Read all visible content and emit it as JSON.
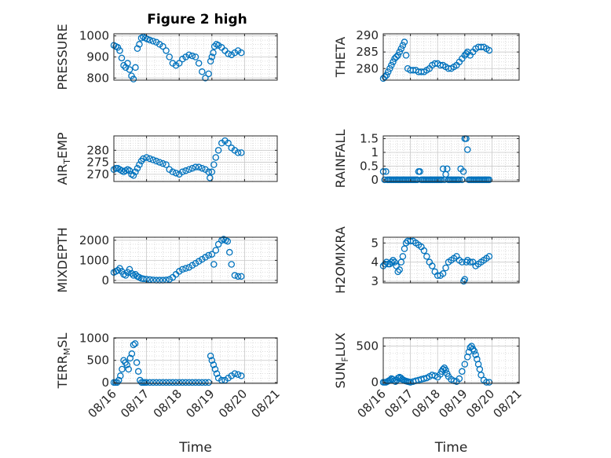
{
  "figure_title": "Figure 2 high",
  "colors": {
    "marker": "#0072bd",
    "axis": "#262626",
    "grid": "#c8c8c8"
  },
  "chart_data": [
    {
      "type": "scatter",
      "title": "Figure 2 high",
      "ylabel": "PRESSURE",
      "ylabel_parts": [
        {
          "t": "PRESSURE"
        }
      ],
      "ylim": [
        790,
        1010
      ],
      "yticks": [
        800,
        900,
        1000
      ],
      "xlim": [
        16,
        21
      ],
      "xticks": [
        "08/16",
        "08/17",
        "08/18",
        "08/19",
        "08/20",
        "08/21"
      ],
      "xtick_labels_visible": false,
      "xlabel": "",
      "grid": true,
      "x": [
        16.0,
        16.06,
        16.12,
        16.18,
        16.24,
        16.3,
        16.36,
        16.42,
        16.48,
        16.54,
        16.6,
        16.66,
        16.72,
        16.78,
        16.84,
        16.9,
        16.96,
        17.02,
        17.1,
        17.2,
        17.3,
        17.4,
        17.5,
        17.6,
        17.7,
        17.8,
        17.9,
        18.0,
        18.1,
        18.2,
        18.3,
        18.4,
        18.5,
        18.6,
        18.7,
        18.8,
        18.9,
        18.96,
        19.0,
        19.04,
        19.08,
        19.14,
        19.2,
        19.3,
        19.4,
        19.5,
        19.6,
        19.7,
        19.8,
        19.9
      ],
      "y": [
        955,
        950,
        945,
        930,
        895,
        860,
        850,
        870,
        840,
        810,
        795,
        850,
        940,
        960,
        990,
        995,
        990,
        985,
        980,
        975,
        970,
        960,
        950,
        930,
        900,
        870,
        860,
        870,
        890,
        900,
        910,
        905,
        900,
        870,
        830,
        800,
        820,
        880,
        900,
        920,
        950,
        960,
        955,
        945,
        930,
        915,
        910,
        920,
        930,
        920
      ]
    },
    {
      "type": "scatter",
      "title": "",
      "ylabel": "THETA",
      "ylabel_parts": [
        {
          "t": "THETA"
        }
      ],
      "ylim": [
        276.5,
        290.5
      ],
      "yticks": [
        280,
        285,
        290
      ],
      "xlim": [
        16,
        21
      ],
      "xticks": [
        "08/16",
        "08/17",
        "08/18",
        "08/19",
        "08/20",
        "08/21"
      ],
      "xtick_labels_visible": false,
      "xlabel": "",
      "grid": true,
      "x": [
        16.0,
        16.06,
        16.12,
        16.18,
        16.24,
        16.3,
        16.36,
        16.42,
        16.48,
        16.54,
        16.6,
        16.66,
        16.72,
        16.78,
        16.84,
        16.9,
        17.0,
        17.1,
        17.2,
        17.3,
        17.4,
        17.5,
        17.6,
        17.7,
        17.8,
        17.9,
        18.0,
        18.1,
        18.2,
        18.3,
        18.4,
        18.5,
        18.6,
        18.7,
        18.8,
        18.9,
        19.0,
        19.06,
        19.1,
        19.2,
        19.3,
        19.4,
        19.5,
        19.6,
        19.7,
        19.8,
        19.9
      ],
      "y": [
        277,
        277.5,
        278,
        279,
        280,
        281,
        282,
        283,
        283.5,
        284,
        285,
        286,
        287,
        288,
        284,
        280,
        279.5,
        279.5,
        279.5,
        279,
        279,
        279,
        279.5,
        280,
        281,
        281.5,
        281.5,
        281,
        281,
        280.5,
        280,
        280,
        280.5,
        281,
        282,
        283,
        284,
        284.5,
        285,
        284,
        285,
        286,
        286.5,
        286.5,
        286.5,
        286,
        285.5
      ]
    },
    {
      "type": "scatter",
      "title": "",
      "ylabel": "AIR_TEMP",
      "ylabel_parts": [
        {
          "t": "AIR"
        },
        {
          "t": "T",
          "sub": true
        },
        {
          "t": "EMP"
        }
      ],
      "ylim": [
        267,
        286
      ],
      "yticks": [
        270,
        275,
        280
      ],
      "xlim": [
        16,
        21
      ],
      "xticks": [
        "08/16",
        "08/17",
        "08/18",
        "08/19",
        "08/20",
        "08/21"
      ],
      "xtick_labels_visible": false,
      "xlabel": "",
      "grid": true,
      "x": [
        16.0,
        16.06,
        16.12,
        16.18,
        16.24,
        16.3,
        16.36,
        16.42,
        16.48,
        16.54,
        16.6,
        16.66,
        16.72,
        16.78,
        16.84,
        16.9,
        17.0,
        17.1,
        17.2,
        17.3,
        17.4,
        17.5,
        17.6,
        17.7,
        17.8,
        17.9,
        18.0,
        18.1,
        18.2,
        18.3,
        18.4,
        18.5,
        18.6,
        18.7,
        18.8,
        18.9,
        18.94,
        19.0,
        19.06,
        19.12,
        19.2,
        19.3,
        19.4,
        19.5,
        19.6,
        19.7,
        19.8,
        19.9
      ],
      "y": [
        272,
        272.5,
        272.5,
        272,
        271.5,
        271,
        271.5,
        272,
        271.5,
        270,
        269.5,
        271,
        272.5,
        274,
        275.5,
        276.5,
        277,
        276.5,
        276,
        275.5,
        275,
        274.5,
        274,
        272,
        271,
        270.5,
        270,
        271,
        271.5,
        272,
        272.5,
        273,
        273,
        272.5,
        272,
        271,
        268.5,
        271,
        274,
        277,
        280,
        283,
        284,
        283,
        281,
        280,
        279,
        279
      ]
    },
    {
      "type": "scatter",
      "title": "",
      "ylabel": "RAINFALL",
      "ylabel_parts": [
        {
          "t": "RAINFALL"
        }
      ],
      "ylim": [
        -0.06,
        1.6
      ],
      "yticks": [
        0,
        0.5,
        1,
        1.5
      ],
      "xlim": [
        16,
        21
      ],
      "xticks": [
        "08/16",
        "08/17",
        "08/18",
        "08/19",
        "08/20",
        "08/21"
      ],
      "xtick_labels_visible": false,
      "xlabel": "",
      "grid": true,
      "x": [
        16.0,
        16.05,
        16.1,
        16.15,
        16.2,
        16.25,
        16.3,
        16.35,
        16.4,
        16.45,
        16.5,
        16.55,
        16.6,
        16.65,
        16.7,
        16.75,
        16.8,
        16.85,
        16.9,
        16.95,
        17.0,
        17.05,
        17.1,
        17.15,
        17.2,
        17.25,
        17.3,
        17.35,
        17.4,
        17.45,
        17.5,
        17.55,
        17.6,
        17.65,
        17.7,
        17.75,
        17.8,
        17.85,
        17.9,
        17.95,
        18.0,
        18.05,
        18.1,
        18.15,
        18.2,
        18.25,
        18.3,
        18.35,
        18.4,
        18.45,
        18.5,
        18.55,
        18.6,
        18.65,
        18.7,
        18.75,
        18.8,
        18.85,
        18.9,
        18.95,
        19.0,
        19.05,
        19.1,
        19.15,
        19.2,
        19.25,
        19.3,
        19.35,
        19.4,
        19.45,
        19.5,
        19.55,
        19.6,
        19.65,
        19.7,
        19.75,
        19.8,
        19.85,
        19.9
      ],
      "y": [
        0.3,
        0,
        0.3,
        0,
        0,
        0,
        0,
        0,
        0,
        0,
        0,
        0,
        0,
        0,
        0,
        0,
        0,
        0,
        0,
        0,
        0,
        0,
        0,
        0,
        0,
        0,
        0.3,
        0.3,
        0,
        0,
        0,
        0,
        0,
        0,
        0,
        0,
        0,
        0,
        0,
        0,
        0,
        0,
        0,
        0,
        0.4,
        0,
        0.2,
        0.4,
        0,
        0,
        0,
        0,
        0,
        0,
        0,
        0,
        0,
        0.4,
        0,
        0.3,
        1.5,
        1.5,
        1.1,
        0,
        0,
        0,
        0,
        0,
        0,
        0,
        0,
        0,
        0,
        0,
        0,
        0,
        0,
        0,
        0
      ]
    },
    {
      "type": "scatter",
      "title": "",
      "ylabel": "MIXDEPTH",
      "ylabel_parts": [
        {
          "t": "MIXDEPTH"
        }
      ],
      "ylim": [
        -120,
        2150
      ],
      "yticks": [
        0,
        1000,
        2000
      ],
      "xlim": [
        16,
        21
      ],
      "xticks": [
        "08/16",
        "08/17",
        "08/18",
        "08/19",
        "08/20",
        "08/21"
      ],
      "xtick_labels_visible": false,
      "xlabel": "",
      "grid": true,
      "x": [
        16.0,
        16.06,
        16.12,
        16.18,
        16.24,
        16.3,
        16.36,
        16.42,
        16.48,
        16.54,
        16.6,
        16.66,
        16.72,
        16.78,
        16.84,
        16.9,
        17.0,
        17.1,
        17.2,
        17.3,
        17.4,
        17.5,
        17.6,
        17.7,
        17.8,
        17.9,
        18.0,
        18.1,
        18.2,
        18.3,
        18.4,
        18.5,
        18.6,
        18.7,
        18.8,
        18.9,
        19.0,
        19.06,
        19.12,
        19.2,
        19.3,
        19.36,
        19.42,
        19.48,
        19.54,
        19.6,
        19.7,
        19.8,
        19.9
      ],
      "y": [
        400,
        450,
        500,
        600,
        450,
        300,
        250,
        400,
        550,
        350,
        250,
        300,
        200,
        150,
        100,
        80,
        60,
        40,
        20,
        10,
        10,
        10,
        20,
        50,
        150,
        300,
        450,
        550,
        600,
        650,
        750,
        850,
        950,
        1050,
        1150,
        1250,
        1300,
        800,
        1500,
        1800,
        2000,
        2050,
        2000,
        1950,
        1400,
        800,
        250,
        200,
        200
      ]
    },
    {
      "type": "scatter",
      "title": "",
      "ylabel": "H2OMIXRA",
      "ylabel_parts": [
        {
          "t": "H2OMIXRA"
        }
      ],
      "ylim": [
        2.92,
        5.3
      ],
      "yticks": [
        3,
        4,
        5
      ],
      "xlim": [
        16,
        21
      ],
      "xticks": [
        "08/16",
        "08/17",
        "08/18",
        "08/19",
        "08/20",
        "08/21"
      ],
      "xtick_labels_visible": false,
      "xlabel": "",
      "grid": true,
      "x": [
        16.0,
        16.06,
        16.12,
        16.18,
        16.24,
        16.3,
        16.36,
        16.42,
        16.48,
        16.54,
        16.6,
        16.66,
        16.72,
        16.78,
        16.84,
        16.9,
        17.0,
        17.1,
        17.2,
        17.3,
        17.4,
        17.5,
        17.6,
        17.7,
        17.8,
        17.9,
        18.0,
        18.1,
        18.2,
        18.3,
        18.4,
        18.5,
        18.6,
        18.7,
        18.8,
        18.9,
        18.96,
        19.0,
        19.06,
        19.1,
        19.2,
        19.3,
        19.4,
        19.5,
        19.6,
        19.7,
        19.8,
        19.9
      ],
      "y": [
        3.8,
        3.9,
        4.0,
        3.9,
        3.9,
        4.0,
        4.1,
        4.0,
        3.8,
        3.5,
        3.6,
        4.0,
        4.3,
        4.7,
        5.0,
        5.1,
        5.1,
        5.1,
        5.0,
        4.9,
        4.8,
        4.6,
        4.3,
        4.0,
        3.8,
        3.5,
        3.3,
        3.3,
        3.4,
        3.7,
        4.0,
        4.1,
        4.2,
        4.3,
        4.1,
        4.0,
        3.0,
        3.1,
        4.0,
        4.1,
        4.0,
        4.0,
        3.8,
        3.9,
        4.0,
        4.1,
        4.2,
        4.3
      ]
    },
    {
      "type": "scatter",
      "title": "",
      "ylabel": "TERR_MSL",
      "ylabel_parts": [
        {
          "t": "TERR"
        },
        {
          "t": "M",
          "sub": true
        },
        {
          "t": "SL"
        }
      ],
      "ylim": [
        -20,
        1010
      ],
      "yticks": [
        0,
        500,
        1000
      ],
      "xlim": [
        16,
        21
      ],
      "xticks": [
        "08/16",
        "08/17",
        "08/18",
        "08/19",
        "08/20",
        "08/21"
      ],
      "xtick_labels_visible": true,
      "xlabel": "Time",
      "grid": true,
      "x": [
        16.0,
        16.05,
        16.1,
        16.15,
        16.2,
        16.25,
        16.3,
        16.35,
        16.4,
        16.45,
        16.5,
        16.55,
        16.6,
        16.65,
        16.7,
        16.75,
        16.8,
        16.85,
        16.9,
        16.95,
        17.0,
        17.1,
        17.2,
        17.3,
        17.4,
        17.5,
        17.6,
        17.7,
        17.8,
        17.9,
        18.0,
        18.1,
        18.2,
        18.3,
        18.4,
        18.5,
        18.6,
        18.7,
        18.8,
        18.9,
        18.96,
        19.0,
        19.05,
        19.1,
        19.15,
        19.2,
        19.3,
        19.4,
        19.5,
        19.6,
        19.7,
        19.8,
        19.9
      ],
      "y": [
        0,
        0,
        0,
        50,
        150,
        300,
        500,
        450,
        400,
        300,
        550,
        650,
        850,
        880,
        450,
        250,
        50,
        0,
        0,
        0,
        0,
        0,
        0,
        0,
        0,
        0,
        0,
        0,
        0,
        0,
        0,
        0,
        0,
        0,
        0,
        0,
        0,
        0,
        0,
        0,
        600,
        500,
        400,
        300,
        200,
        100,
        50,
        50,
        100,
        150,
        200,
        180,
        150
      ]
    },
    {
      "type": "scatter",
      "title": "",
      "ylabel": "SUN_FLUX",
      "ylabel_parts": [
        {
          "t": "SUN"
        },
        {
          "t": "F",
          "sub": true
        },
        {
          "t": "LUX"
        }
      ],
      "ylim": [
        -15,
        615
      ],
      "yticks": [
        0,
        500
      ],
      "xlim": [
        16,
        21
      ],
      "xticks": [
        "08/16",
        "08/17",
        "08/18",
        "08/19",
        "08/20",
        "08/21"
      ],
      "xtick_labels_visible": true,
      "xlabel": "Time",
      "grid": true,
      "x": [
        16.0,
        16.05,
        16.1,
        16.15,
        16.2,
        16.25,
        16.3,
        16.35,
        16.4,
        16.45,
        16.5,
        16.55,
        16.6,
        16.65,
        16.7,
        16.75,
        16.8,
        16.85,
        16.9,
        16.95,
        17.0,
        17.1,
        17.2,
        17.3,
        17.4,
        17.5,
        17.6,
        17.7,
        17.8,
        17.9,
        18.0,
        18.1,
        18.15,
        18.2,
        18.25,
        18.3,
        18.35,
        18.4,
        18.5,
        18.6,
        18.7,
        18.8,
        18.9,
        19.0,
        19.1,
        19.15,
        19.2,
        19.25,
        19.3,
        19.35,
        19.4,
        19.45,
        19.5,
        19.55,
        19.6,
        19.7,
        19.8,
        19.9
      ],
      "y": [
        0,
        0,
        0,
        10,
        20,
        30,
        50,
        40,
        20,
        10,
        30,
        60,
        70,
        60,
        40,
        30,
        20,
        15,
        10,
        5,
        0,
        10,
        20,
        30,
        40,
        50,
        60,
        80,
        100,
        90,
        70,
        110,
        150,
        180,
        200,
        170,
        120,
        80,
        40,
        20,
        10,
        50,
        150,
        250,
        350,
        420,
        480,
        500,
        460,
        430,
        380,
        320,
        250,
        180,
        100,
        30,
        0,
        0
      ]
    }
  ]
}
